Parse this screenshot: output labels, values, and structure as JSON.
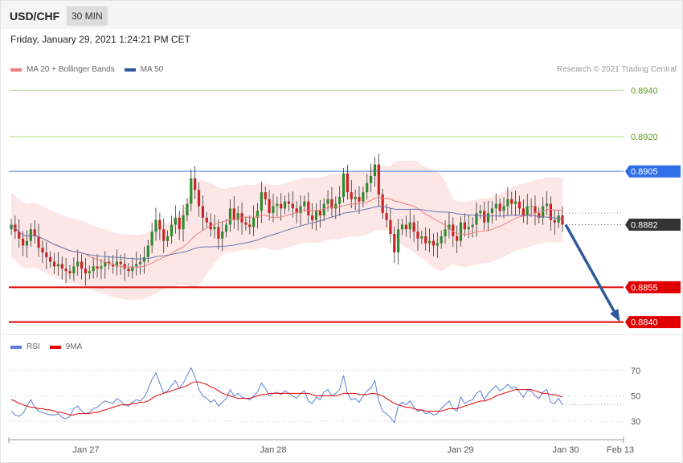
{
  "header": {
    "symbol": "USD/CHF",
    "timeframe": "30 MIN"
  },
  "datetime": "Friday, January 29, 2021 1:24:21 PM CET",
  "copyright": "Research © 2021 Trading Central",
  "legend": [
    {
      "label": "MA 20 + Bollinger Bands",
      "color": "#f08080"
    },
    {
      "label": "MA 50",
      "color": "#2e5a9c"
    }
  ],
  "rsi_legend": [
    {
      "label": "RSI",
      "color": "#5b7fd6"
    },
    {
      "label": "9MA",
      "color": "#e00000"
    }
  ],
  "chart_data": {
    "type": "line",
    "title": "",
    "ylim": [
      0.8835,
      0.8946
    ],
    "x_ticks": [
      "Jan 27",
      "Jan 28",
      "Jan 29",
      "Jan 30",
      "Feb 13"
    ],
    "last_price": 0.8882,
    "levels": [
      {
        "value": 0.894,
        "label": "0.8940",
        "style": "resistance-green",
        "color": "#5c9a1a"
      },
      {
        "value": 0.892,
        "label": "0.8920",
        "style": "resistance-green",
        "color": "#5c9a1a"
      },
      {
        "value": 0.8905,
        "label": "0.8905",
        "style": "pivot-blue",
        "color": "#2e6fe8"
      },
      {
        "value": 0.8882,
        "label": "0.8882",
        "style": "last-price",
        "color": "#333333"
      },
      {
        "value": 0.8855,
        "label": "0.8855",
        "style": "support-red",
        "color": "#e00000"
      },
      {
        "value": 0.884,
        "label": "0.8840",
        "style": "support-red",
        "color": "#e00000"
      }
    ],
    "close_series": [
      0.8882,
      0.8879,
      0.8876,
      0.8873,
      0.8875,
      0.888,
      0.8877,
      0.8872,
      0.887,
      0.8868,
      0.8866,
      0.8864,
      0.8865,
      0.8863,
      0.8862,
      0.8861,
      0.8864,
      0.8866,
      0.8863,
      0.8861,
      0.8862,
      0.8864,
      0.8863,
      0.8864,
      0.8866,
      0.8865,
      0.8864,
      0.8866,
      0.8865,
      0.8863,
      0.8862,
      0.8864,
      0.8865,
      0.8866,
      0.8868,
      0.8873,
      0.8879,
      0.8884,
      0.888,
      0.8875,
      0.8877,
      0.8882,
      0.8885,
      0.888,
      0.8886,
      0.8891,
      0.8902,
      0.8897,
      0.889,
      0.8885,
      0.8883,
      0.888,
      0.8881,
      0.8876,
      0.8879,
      0.8882,
      0.8889,
      0.8884,
      0.8887,
      0.8883,
      0.8882,
      0.8881,
      0.8885,
      0.8888,
      0.8896,
      0.8893,
      0.8887,
      0.889,
      0.8891,
      0.8889,
      0.8892,
      0.8891,
      0.8889,
      0.8887,
      0.889,
      0.8892,
      0.8886,
      0.8884,
      0.8888,
      0.8886,
      0.8891,
      0.8893,
      0.8889,
      0.8891,
      0.8894,
      0.8904,
      0.8896,
      0.8893,
      0.8894,
      0.8892,
      0.8896,
      0.89,
      0.8903,
      0.8908,
      0.8895,
      0.8887,
      0.8884,
      0.8878,
      0.887,
      0.888,
      0.8882,
      0.888,
      0.8883,
      0.8879,
      0.8876,
      0.8877,
      0.8874,
      0.8875,
      0.8873,
      0.8874,
      0.8877,
      0.888,
      0.8882,
      0.8877,
      0.8875,
      0.8883,
      0.888,
      0.8881,
      0.8882,
      0.8887,
      0.8888,
      0.8883,
      0.8887,
      0.8889,
      0.8891,
      0.8888,
      0.889,
      0.8893,
      0.8891,
      0.8892,
      0.8889,
      0.8886,
      0.889,
      0.889,
      0.8887,
      0.8885,
      0.889,
      0.8891,
      0.8884,
      0.8883,
      0.8886,
      0.8882
    ],
    "rsi": {
      "ylim": [
        20,
        80
      ],
      "y_ticks": [
        30,
        50,
        70
      ],
      "last_value": 43,
      "rsi_series": [
        38,
        35,
        34,
        36,
        42,
        47,
        41,
        38,
        37,
        36,
        35,
        35,
        36,
        33,
        32,
        34,
        40,
        42,
        38,
        36,
        37,
        40,
        41,
        44,
        46,
        45,
        44,
        48,
        46,
        43,
        42,
        45,
        47,
        46,
        49,
        55,
        63,
        68,
        60,
        52,
        54,
        58,
        62,
        56,
        60,
        66,
        72,
        65,
        55,
        50,
        48,
        45,
        47,
        42,
        45,
        48,
        55,
        50,
        52,
        49,
        48,
        47,
        50,
        53,
        60,
        56,
        50,
        52,
        53,
        51,
        54,
        52,
        50,
        48,
        52,
        54,
        46,
        44,
        49,
        47,
        53,
        55,
        50,
        52,
        55,
        66,
        52,
        47,
        48,
        45,
        50,
        54,
        56,
        62,
        46,
        38,
        36,
        33,
        29,
        42,
        45,
        43,
        46,
        41,
        38,
        39,
        36,
        37,
        35,
        36,
        40,
        43,
        46,
        40,
        38,
        49,
        44,
        46,
        47,
        52,
        54,
        47,
        52,
        55,
        58,
        54,
        56,
        59,
        56,
        57,
        53,
        49,
        54,
        54,
        50,
        48,
        53,
        55,
        45,
        44,
        48,
        43
      ],
      "ma_series": [
        47,
        46,
        44,
        43,
        42,
        41,
        41,
        40,
        40,
        39,
        39,
        38,
        37,
        37,
        36,
        35,
        35,
        36,
        36,
        36,
        36,
        37,
        37,
        38,
        39,
        40,
        41,
        42,
        43,
        43,
        43,
        44,
        44,
        45,
        45,
        46,
        48,
        50,
        51,
        52,
        53,
        54,
        55,
        56,
        57,
        58,
        60,
        61,
        61,
        60,
        59,
        57,
        56,
        54,
        52,
        51,
        50,
        49,
        48,
        48,
        48,
        48,
        49,
        50,
        51,
        51,
        52,
        52,
        52,
        52,
        52,
        52,
        52,
        52,
        52,
        52,
        52,
        51,
        50,
        50,
        50,
        50,
        50,
        50,
        51,
        52,
        52,
        52,
        52,
        51,
        51,
        51,
        52,
        52,
        51,
        50,
        48,
        46,
        44,
        43,
        42,
        41,
        41,
        40,
        39,
        39,
        38,
        38,
        38,
        38,
        38,
        39,
        40,
        40,
        40,
        41,
        42,
        43,
        44,
        45,
        46,
        46,
        47,
        48,
        50,
        51,
        52,
        53,
        54,
        55,
        55,
        55,
        55,
        55,
        54,
        53,
        52,
        52,
        51,
        51,
        50,
        49
      ]
    }
  }
}
